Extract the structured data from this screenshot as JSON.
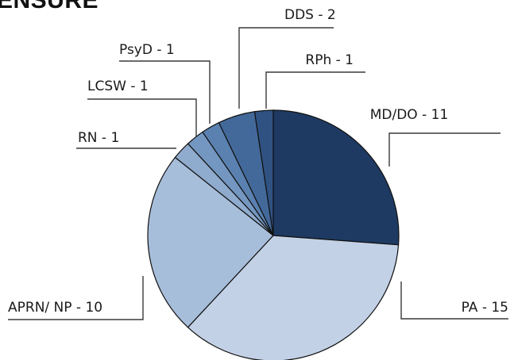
{
  "header_fragment": "ENSURE",
  "chart_data": {
    "type": "pie",
    "title": "",
    "slices": [
      {
        "category": "MD/DO",
        "value": 11,
        "label": "MD/DO - 11",
        "color": "#1e3a63"
      },
      {
        "category": "PA",
        "value": 15,
        "label": "PA - 15",
        "color": "#c2d1e6"
      },
      {
        "category": "APRN/ NP",
        "value": 10,
        "label": "APRN/ NP - 10",
        "color": "#a7bedb"
      },
      {
        "category": "RN",
        "value": 1,
        "label": "RN - 1",
        "color": "#8fabcd"
      },
      {
        "category": "LCSW",
        "value": 1,
        "label": "LCSW - 1",
        "color": "#7397c0"
      },
      {
        "category": "PsyD",
        "value": 1,
        "label": "PsyD - 1",
        "color": "#5a81b0"
      },
      {
        "category": "DDS",
        "value": 2,
        "label": "DDS - 2",
        "color": "#43699a"
      },
      {
        "category": "RPh",
        "value": 1,
        "label": "RPh - 1",
        "color": "#2f5282"
      }
    ]
  }
}
